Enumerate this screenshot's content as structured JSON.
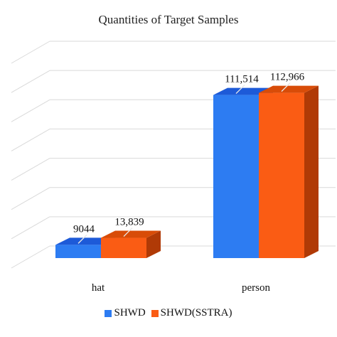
{
  "chart_data": {
    "type": "bar",
    "title": "Quantities of Target Samples",
    "categories": [
      "hat",
      "person"
    ],
    "series": [
      {
        "name": "SHWD",
        "values": [
          9044,
          111514
        ],
        "labels": [
          "9044",
          "111,514"
        ],
        "color": "#2d7cf2"
      },
      {
        "name": "SHWD(SSTRA)",
        "values": [
          13839,
          112966
        ],
        "labels": [
          "13,839",
          "112,966"
        ],
        "color": "#fa5c14"
      }
    ],
    "ylim": [
      0,
      140000
    ],
    "grid": true,
    "three_d": true,
    "legend": "bottom",
    "colors": {
      "shwd_side": "#1746b8",
      "shwd_top": "#1d5ad8",
      "sstra_side": "#b03a06",
      "sstra_top": "#d84c08",
      "grid": "#d9d9d9"
    }
  }
}
